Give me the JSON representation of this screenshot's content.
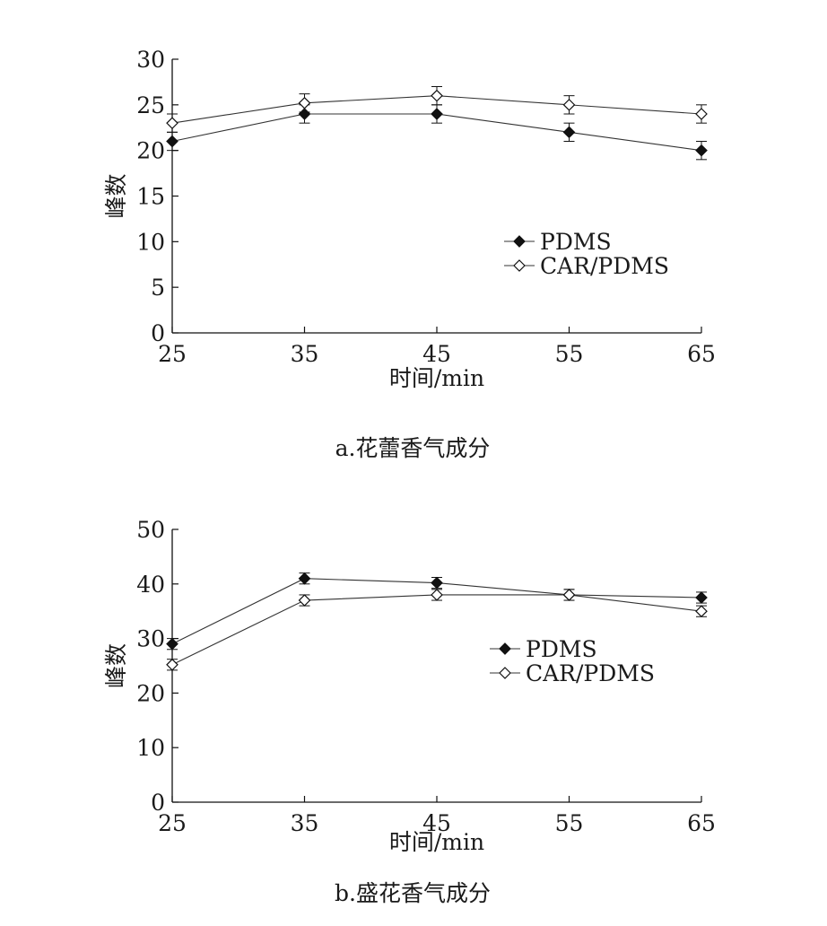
{
  "chart_data": [
    {
      "type": "line",
      "caption": "a.花蕾香气成分",
      "xlabel": "时间/min",
      "ylabel": "峰数",
      "x": [
        25,
        35,
        45,
        55,
        65
      ],
      "xticks": [
        "25",
        "35",
        "45",
        "55",
        "65"
      ],
      "xlim": [
        25,
        65
      ],
      "ylim": [
        0,
        30
      ],
      "yticks": [
        "0",
        "5",
        "10",
        "15",
        "20",
        "25",
        "30"
      ],
      "grid": false,
      "legend_position": "center-right",
      "series": [
        {
          "name": "PDMS",
          "marker": "filled-diamond",
          "values": [
            21,
            24,
            24,
            22,
            20
          ],
          "error": [
            1,
            1,
            1,
            1,
            1
          ]
        },
        {
          "name": "CAR/PDMS",
          "marker": "open-diamond",
          "values": [
            23,
            25.2,
            26,
            25,
            24
          ],
          "error": [
            1,
            1,
            1,
            1,
            1
          ]
        }
      ]
    },
    {
      "type": "line",
      "caption": "b.盛花香气成分",
      "xlabel": "时间/min",
      "ylabel": "峰数",
      "x": [
        25,
        35,
        45,
        55,
        65
      ],
      "xticks": [
        "25",
        "35",
        "45",
        "55",
        "65"
      ],
      "xlim": [
        25,
        65
      ],
      "ylim": [
        0,
        50
      ],
      "yticks": [
        "0",
        "10",
        "20",
        "30",
        "40",
        "50"
      ],
      "grid": false,
      "legend_position": "center-right",
      "series": [
        {
          "name": "PDMS",
          "marker": "filled-diamond",
          "values": [
            29,
            41,
            40.2,
            38,
            37.5
          ],
          "error": [
            1,
            1,
            1,
            1,
            1
          ]
        },
        {
          "name": "CAR/PDMS",
          "marker": "open-diamond",
          "values": [
            25.2,
            37,
            38,
            38,
            35
          ],
          "error": [
            1,
            1,
            1,
            1,
            1
          ]
        }
      ]
    }
  ]
}
